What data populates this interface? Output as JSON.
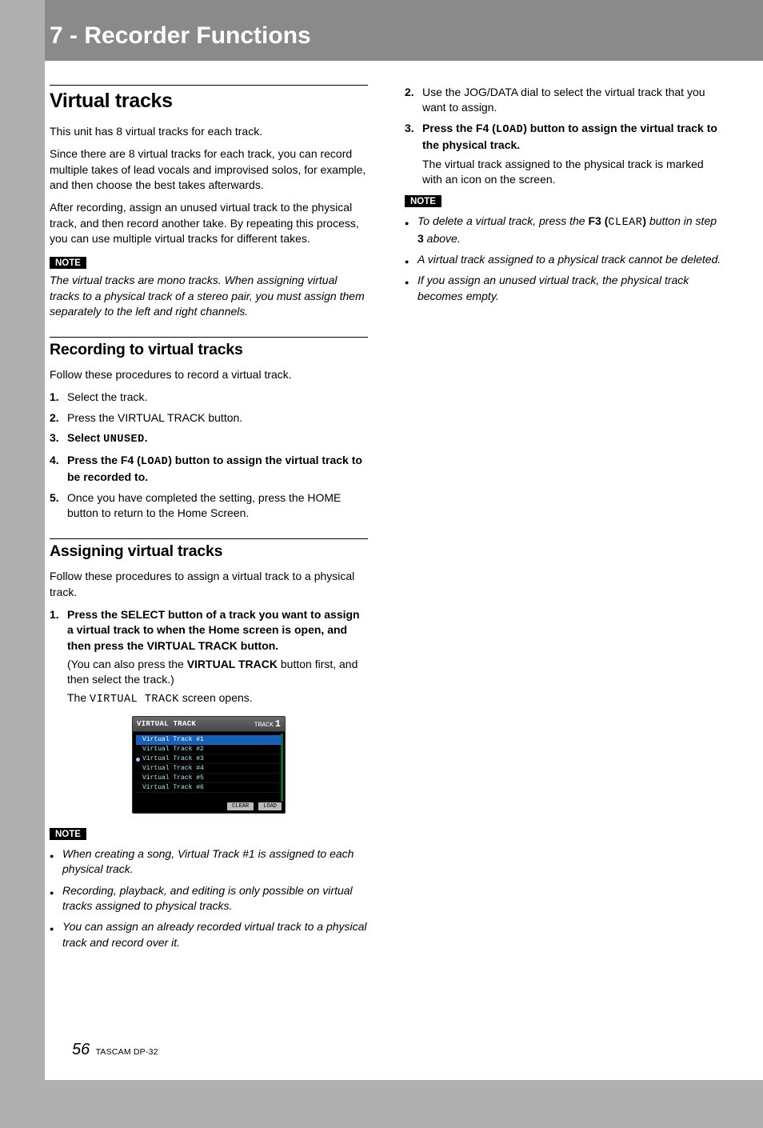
{
  "header": {
    "chapter_title": "7 - Recorder Functions"
  },
  "left": {
    "h1": "Virtual tracks",
    "p1": "This unit has 8 virtual tracks for each track.",
    "p2": "Since there are 8 virtual tracks for each track, you can record multiple takes of lead vocals and improvised solos, for example, and then choose the best takes afterwards.",
    "p3": "After recording, assign an unused virtual track to the physical track, and then record another take. By repeating this process, you can use multiple virtual tracks for different takes.",
    "note_label": "NOTE",
    "note1": "The virtual tracks are mono tracks. When assigning virtual tracks to a physical track of a stereo pair, you must assign them separately to the left and right channels.",
    "h2a": "Recording to virtual tracks",
    "rec_intro": "Follow these procedures to record a virtual track.",
    "rec_steps": [
      {
        "n": "1.",
        "b": "Select the track."
      },
      {
        "n": "2.",
        "b": "Press the VIRTUAL TRACK button."
      },
      {
        "n": "3.",
        "pre": "Select ",
        "mono": "UNUSED",
        "post": "."
      },
      {
        "n": "4.",
        "pre": "Press the F4 (",
        "mono": "LOAD",
        "post": ") button to assign the virtual track to be recorded to."
      },
      {
        "n": "5.",
        "b": "Once you have completed the setting, press the HOME button to return to the Home Screen."
      }
    ],
    "h2b": "Assigning virtual tracks",
    "asg_intro": "Follow these procedures to assign a virtual track to a physical track.",
    "asg_step1_bold": "Press the SELECT button of a track you want to assign a virtual track to when the Home screen is open, and then press the VIRTUAL TRACK button.",
    "asg_step1_sub_a": "(You can also press the ",
    "asg_step1_sub_b": "VIRTUAL TRACK",
    "asg_step1_sub_c": " button first, and then select the track.)",
    "asg_step1_open_a": "The ",
    "asg_step1_open_mono": "VIRTUAL TRACK",
    "asg_step1_open_b": " screen opens.",
    "note_label2": "NOTE",
    "note_list1": [
      "When creating a song, Virtual Track #1 is assigned to each physical track.",
      "Recording, playback, and editing is only possible on virtual tracks assigned to physical tracks.",
      "You can assign an already recorded virtual track to a physical track and record over it."
    ],
    "vt_screen": {
      "title": "VIRTUAL TRACK",
      "track_label": "TRACK",
      "track_num": "1",
      "rows": [
        {
          "label": "Virtual Track #1",
          "selected": true,
          "assigned": false
        },
        {
          "label": "Virtual Track #2",
          "selected": false,
          "assigned": false
        },
        {
          "label": "Virtual Track #3",
          "selected": false,
          "assigned": true
        },
        {
          "label": "Virtual Track #4",
          "selected": false,
          "assigned": false
        },
        {
          "label": "Virtual Track #5",
          "selected": false,
          "assigned": false
        },
        {
          "label": "Virtual Track #6",
          "selected": false,
          "assigned": false
        }
      ],
      "btn_clear": "CLEAR",
      "btn_load": "LOAD"
    }
  },
  "right": {
    "cont_steps": [
      {
        "n": "2.",
        "b": "Use the JOG/DATA dial to select the virtual track that you want to assign."
      },
      {
        "n": "3.",
        "pre": "Press the F4 (",
        "mono": "LOAD",
        "post": ") button to assign the virtual track to the physical track.",
        "sub": "The virtual track assigned to the physical track is marked with an icon on the screen."
      }
    ],
    "note_label": "NOTE",
    "note2_a_pre": "To delete a virtual track, press the ",
    "note2_a_b1": "F3 (",
    "note2_a_mono": "CLEAR",
    "note2_a_b2": ")",
    "note2_a_mid": " button in step ",
    "note2_a_b3": "3",
    "note2_a_post": " above.",
    "note2_b": "A virtual track assigned to a physical track cannot be deleted.",
    "note2_c": "If you assign an unused virtual track, the physical track becomes empty."
  },
  "footer": {
    "page_num": "56",
    "product": "TASCAM DP-32"
  }
}
